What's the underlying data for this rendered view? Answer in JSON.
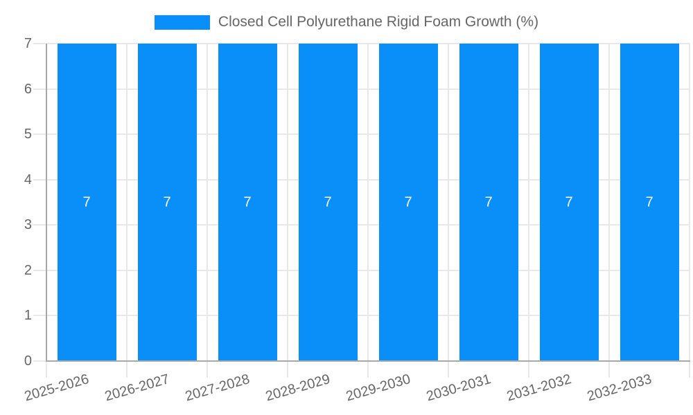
{
  "legend": {
    "label": "Closed Cell Polyurethane Rigid Foam Growth (%)",
    "swatch_color": "#0a8ff8"
  },
  "chart_data": {
    "type": "bar",
    "title": "Closed Cell Polyurethane Rigid Foam Growth (%)",
    "categories": [
      "2025-2026",
      "2026-2027",
      "2027-2028",
      "2028-2029",
      "2029-2030",
      "2030-2031",
      "2031-2032",
      "2032-2033"
    ],
    "values": [
      7,
      7,
      7,
      7,
      7,
      7,
      7,
      7
    ],
    "bar_labels": [
      "7",
      "7",
      "7",
      "7",
      "7",
      "7",
      "7",
      "7"
    ],
    "xlabel": "",
    "ylabel": "",
    "ylim": [
      0,
      7
    ],
    "yticks": [
      0,
      1,
      2,
      3,
      4,
      5,
      6,
      7
    ],
    "grid": true,
    "legend_position": "top",
    "x_label_rotation_deg": -16
  },
  "colors": {
    "bar": "#0a8ff8",
    "axis_text": "#666666",
    "axis_line": "#a8a8a8",
    "gridline": "#e8e8e8",
    "background": "#ffffff",
    "bar_label": "#ffffff"
  }
}
